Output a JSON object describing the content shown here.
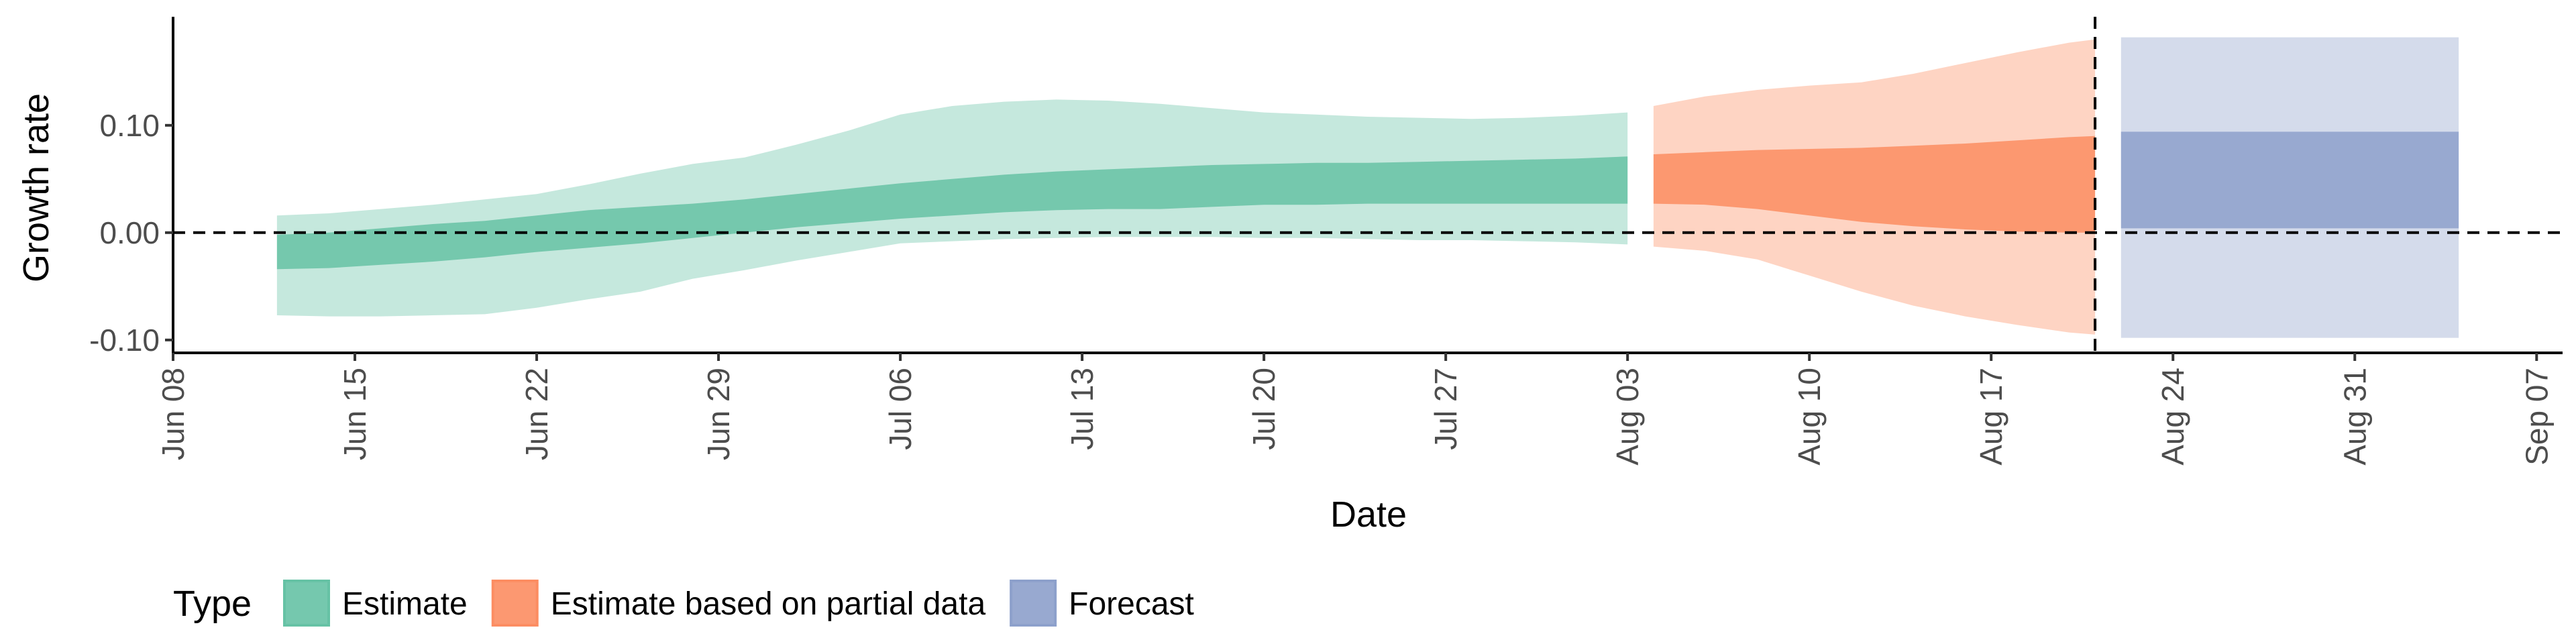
{
  "chart_data": {
    "type": "area",
    "xlabel": "Date",
    "ylabel": "Growth rate",
    "x_ticks": [
      "Jun 08",
      "Jun 15",
      "Jun 22",
      "Jun 29",
      "Jul 06",
      "Jul 13",
      "Jul 20",
      "Jul 27",
      "Aug 03",
      "Aug 10",
      "Aug 17",
      "Aug 24",
      "Aug 31",
      "Sep 07"
    ],
    "y_ticks": [
      "0.10",
      "0.00",
      "-0.10"
    ],
    "y_tick_values": [
      0.1,
      0.0,
      -0.1
    ],
    "ylim": [
      -0.112,
      0.198
    ],
    "xlim": [
      "2020-06-08",
      "2020-09-08"
    ],
    "reference_lines": {
      "horizontal_y": 0.0,
      "vertical_date": "2020-08-21"
    },
    "legend": {
      "title": "Type",
      "position": "bottom-left"
    },
    "series": [
      {
        "name": "Estimate",
        "color": "#66c2a5",
        "x": [
          "2020-06-12",
          "2020-06-14",
          "2020-06-16",
          "2020-06-18",
          "2020-06-20",
          "2020-06-22",
          "2020-06-24",
          "2020-06-26",
          "2020-06-28",
          "2020-06-30",
          "2020-07-02",
          "2020-07-04",
          "2020-07-06",
          "2020-07-08",
          "2020-07-10",
          "2020-07-12",
          "2020-07-14",
          "2020-07-16",
          "2020-07-18",
          "2020-07-20",
          "2020-07-22",
          "2020-07-24",
          "2020-07-26",
          "2020-07-28",
          "2020-07-30",
          "2020-08-01",
          "2020-08-03"
        ],
        "lower_90": [
          -0.077,
          -0.078,
          -0.078,
          -0.077,
          -0.076,
          -0.07,
          -0.062,
          -0.055,
          -0.043,
          -0.035,
          -0.026,
          -0.018,
          -0.01,
          -0.008,
          -0.006,
          -0.005,
          -0.004,
          -0.004,
          -0.004,
          -0.005,
          -0.005,
          -0.006,
          -0.007,
          -0.007,
          -0.008,
          -0.009,
          -0.011
        ],
        "upper_90": [
          0.016,
          0.018,
          0.022,
          0.026,
          0.031,
          0.036,
          0.045,
          0.055,
          0.064,
          0.07,
          0.082,
          0.095,
          0.11,
          0.118,
          0.122,
          0.124,
          0.123,
          0.12,
          0.116,
          0.112,
          0.11,
          0.108,
          0.107,
          0.106,
          0.107,
          0.109,
          0.112
        ],
        "lower_50": [
          -0.034,
          -0.033,
          -0.03,
          -0.027,
          -0.023,
          -0.018,
          -0.014,
          -0.01,
          -0.005,
          0.0,
          0.005,
          0.009,
          0.013,
          0.016,
          0.019,
          0.021,
          0.022,
          0.022,
          0.024,
          0.026,
          0.026,
          0.027,
          0.027,
          0.027,
          0.027,
          0.027,
          0.027
        ],
        "upper_50": [
          -0.002,
          0.0,
          0.004,
          0.008,
          0.011,
          0.016,
          0.021,
          0.024,
          0.027,
          0.031,
          0.036,
          0.041,
          0.046,
          0.05,
          0.054,
          0.057,
          0.059,
          0.061,
          0.063,
          0.064,
          0.065,
          0.065,
          0.066,
          0.067,
          0.068,
          0.069,
          0.071
        ]
      },
      {
        "name": "Estimate based on partial data",
        "color": "#fc8d62",
        "x": [
          "2020-08-04",
          "2020-08-06",
          "2020-08-08",
          "2020-08-10",
          "2020-08-12",
          "2020-08-14",
          "2020-08-16",
          "2020-08-18",
          "2020-08-20",
          "2020-08-21"
        ],
        "lower_90": [
          -0.013,
          -0.017,
          -0.025,
          -0.04,
          -0.055,
          -0.068,
          -0.078,
          -0.086,
          -0.093,
          -0.095
        ],
        "upper_90": [
          0.118,
          0.127,
          0.133,
          0.137,
          0.14,
          0.148,
          0.158,
          0.168,
          0.177,
          0.18
        ],
        "lower_50": [
          0.027,
          0.026,
          0.022,
          0.016,
          0.01,
          0.006,
          0.003,
          0.001,
          0.0,
          0.0
        ],
        "upper_50": [
          0.073,
          0.075,
          0.077,
          0.078,
          0.079,
          0.081,
          0.083,
          0.086,
          0.089,
          0.09
        ]
      },
      {
        "name": "Forecast",
        "color": "#8da0cb",
        "x": [
          "2020-08-22",
          "2020-09-04"
        ],
        "lower_90": [
          -0.098,
          -0.098
        ],
        "upper_90": [
          0.182,
          0.182
        ],
        "lower_50": [
          0.004,
          0.004
        ],
        "upper_50": [
          0.094,
          0.094
        ]
      }
    ]
  }
}
